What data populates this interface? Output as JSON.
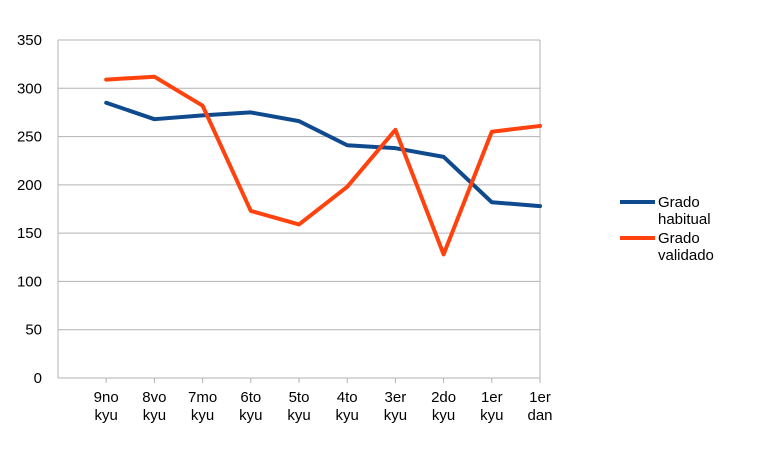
{
  "chart_data": {
    "type": "line",
    "categories": [
      [
        "9no",
        "kyu"
      ],
      [
        "8vo",
        "kyu"
      ],
      [
        "7mo",
        "kyu"
      ],
      [
        "6to",
        "kyu"
      ],
      [
        "5to",
        "kyu"
      ],
      [
        "4to",
        "kyu"
      ],
      [
        "3er",
        "kyu"
      ],
      [
        "2do",
        "kyu"
      ],
      [
        "1er",
        "kyu"
      ],
      [
        "1er",
        "dan"
      ]
    ],
    "series": [
      {
        "name": [
          "Grado",
          "habitual"
        ],
        "color": "#104a8e",
        "values": [
          285,
          268,
          272,
          275,
          266,
          241,
          238,
          229,
          182,
          178
        ]
      },
      {
        "name": [
          "Grado",
          "validado"
        ],
        "color": "#ff420e",
        "values": [
          309,
          312,
          282,
          173,
          159,
          198,
          257,
          128,
          255,
          261
        ]
      }
    ],
    "yticks": [
      "0",
      "50",
      "100",
      "150",
      "200",
      "250",
      "300",
      "350"
    ],
    "ylim": [
      0,
      350
    ],
    "grid": true,
    "legend": "right",
    "title": "",
    "xlabel": "",
    "ylabel": ""
  }
}
